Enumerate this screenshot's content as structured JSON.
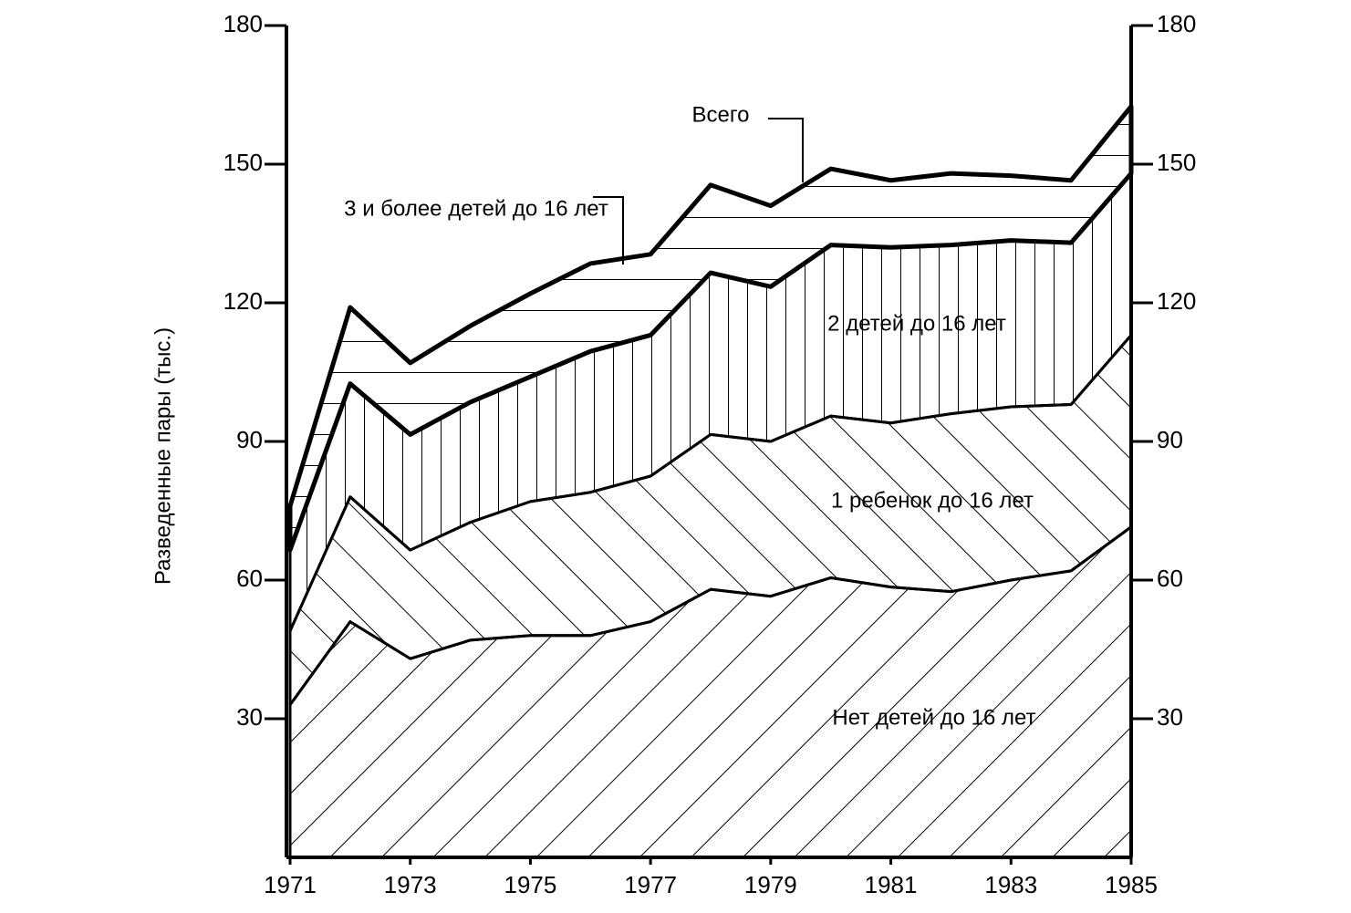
{
  "chart_data": {
    "type": "area",
    "stacked": true,
    "y_label": "Разведенные пары (тыс.)",
    "annotation": "Всего",
    "x": [
      1971,
      1972,
      1973,
      1974,
      1975,
      1976,
      1977,
      1978,
      1979,
      1980,
      1981,
      1982,
      1983,
      1984,
      1985
    ],
    "xlim": [
      1971,
      1985
    ],
    "xticks": [
      1971,
      1973,
      1975,
      1977,
      1979,
      1981,
      1983,
      1985
    ],
    "ylim": [
      0,
      180
    ],
    "yticks": [
      30,
      60,
      90,
      120,
      150,
      180
    ],
    "y2lim": [
      0,
      180
    ],
    "y2ticks": [
      30,
      60,
      90,
      120,
      150,
      180
    ],
    "series": [
      {
        "name": "Нет детей до 16 лет",
        "color": "#000000",
        "values": [
          33,
          51,
          43,
          47,
          48,
          48,
          51,
          58,
          56.5,
          60.5,
          58.5,
          57.5,
          60,
          62,
          71.5
        ]
      },
      {
        "name": "1 ребенок до 16 лет",
        "color": "#000000",
        "values": [
          16,
          27,
          23.5,
          25.5,
          29,
          31,
          31.5,
          33.5,
          33.5,
          35,
          35.5,
          38.5,
          37.5,
          36,
          41.5
        ]
      },
      {
        "name": "2 детей до 16 лет",
        "color": "#000000",
        "values": [
          17.5,
          24.5,
          25,
          26,
          27,
          30.5,
          30.5,
          35,
          33.5,
          37,
          38,
          36.5,
          36,
          35,
          35
        ]
      },
      {
        "name": "3 и более детей до 16 лет",
        "color": "#000000",
        "values": [
          9.5,
          16.5,
          15.5,
          16.5,
          18,
          19,
          17.5,
          19,
          17.5,
          16.5,
          14.5,
          15.5,
          14,
          13.5,
          14.5
        ]
      }
    ]
  }
}
